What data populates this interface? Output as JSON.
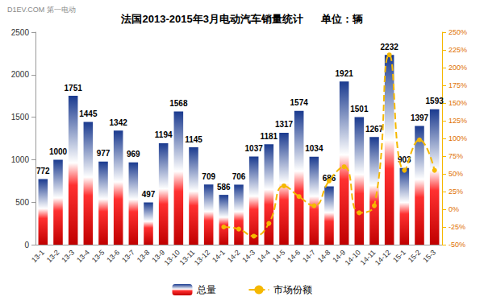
{
  "chart_data": {
    "type": "bar",
    "title": "法国2013-2015年3月电动汽车销量统计      单位：辆",
    "annotations": [
      "D1EV.COM 第一电动"
    ],
    "categories": [
      "13-1",
      "13-2",
      "13-3",
      "13-4",
      "13-5",
      "13-6",
      "13-7",
      "13-8",
      "13-9",
      "13-10",
      "13-11",
      "13-12",
      "14-1",
      "14-2",
      "14-3",
      "14-4",
      "14-5",
      "14-6",
      "14-7",
      "14-8",
      "14-9",
      "14-10",
      "14-11",
      "14-12",
      "15-1",
      "15-2",
      "15-3"
    ],
    "series": [
      {
        "name": "总量",
        "type": "bar",
        "color": "#1a3a8f",
        "data_labels": true,
        "values": [
          772,
          1000,
          1751,
          1445,
          977,
          1342,
          969,
          497,
          1194,
          1568,
          1145,
          709,
          586,
          706,
          1037,
          1181,
          1317,
          1574,
          1034,
          686,
          1921,
          1501,
          1267,
          2232,
          903,
          1397,
          1593
        ]
      },
      {
        "name": "市场份额",
        "type": "line",
        "axis": "y2",
        "color": "#f5b800",
        "marker": "circle",
        "line_style": "dashed",
        "values": [
          null,
          null,
          null,
          null,
          null,
          null,
          null,
          null,
          null,
          null,
          null,
          null,
          -25,
          -28,
          -38,
          -20,
          33,
          18,
          5,
          40,
          60,
          -5,
          5,
          218,
          55,
          98,
          55
        ]
      }
    ],
    "ylim": [
      0,
      2500
    ],
    "yticks": [
      0,
      500,
      1000,
      1500,
      2000,
      2500
    ],
    "y2lim": [
      -50,
      250
    ],
    "y2ticks": [
      {
        "value": -50,
        "label": "-50%"
      },
      {
        "value": -25,
        "label": "-25%"
      },
      {
        "value": 0,
        "label": "0%"
      },
      {
        "value": 25,
        "label": "25%"
      },
      {
        "value": 50,
        "label": "50%"
      },
      {
        "value": 75,
        "label": "75%"
      },
      {
        "value": 100,
        "label": "100%"
      },
      {
        "value": 125,
        "label": "125%"
      },
      {
        "value": 150,
        "label": "150%"
      },
      {
        "value": 175,
        "label": "175%"
      },
      {
        "value": 200,
        "label": "200%"
      },
      {
        "value": 225,
        "label": "225%"
      },
      {
        "value": 250,
        "label": "250%"
      }
    ],
    "grid": false,
    "legend": "bottom"
  }
}
